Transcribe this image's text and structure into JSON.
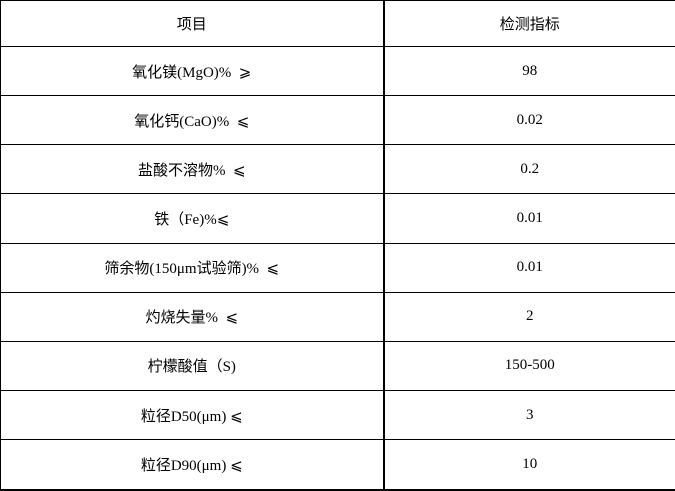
{
  "colors": {
    "border": "#000000",
    "background": "#ffffff",
    "text": "#000000"
  },
  "table": {
    "header": {
      "item": "项目",
      "value": "检测指标"
    },
    "rows": [
      {
        "item": "氧化镁(MgO)%  ⩾",
        "value": "98"
      },
      {
        "item": "氧化钙(CaO)%  ⩽",
        "value": "0.02"
      },
      {
        "item": "盐酸不溶物%  ⩽",
        "value": "0.2"
      },
      {
        "item": "铁（Fe)%⩽",
        "value": "0.01"
      },
      {
        "item": "筛余物(150μm试验筛)%  ⩽",
        "value": "0.01"
      },
      {
        "item": "灼烧失量%  ⩽",
        "value": "2"
      },
      {
        "item": "柠檬酸值（S)",
        "value": "150-500"
      },
      {
        "item": "粒径D50(μm) ⩽",
        "value": "3"
      },
      {
        "item": "粒径D90(μm) ⩽",
        "value": "10"
      }
    ]
  }
}
